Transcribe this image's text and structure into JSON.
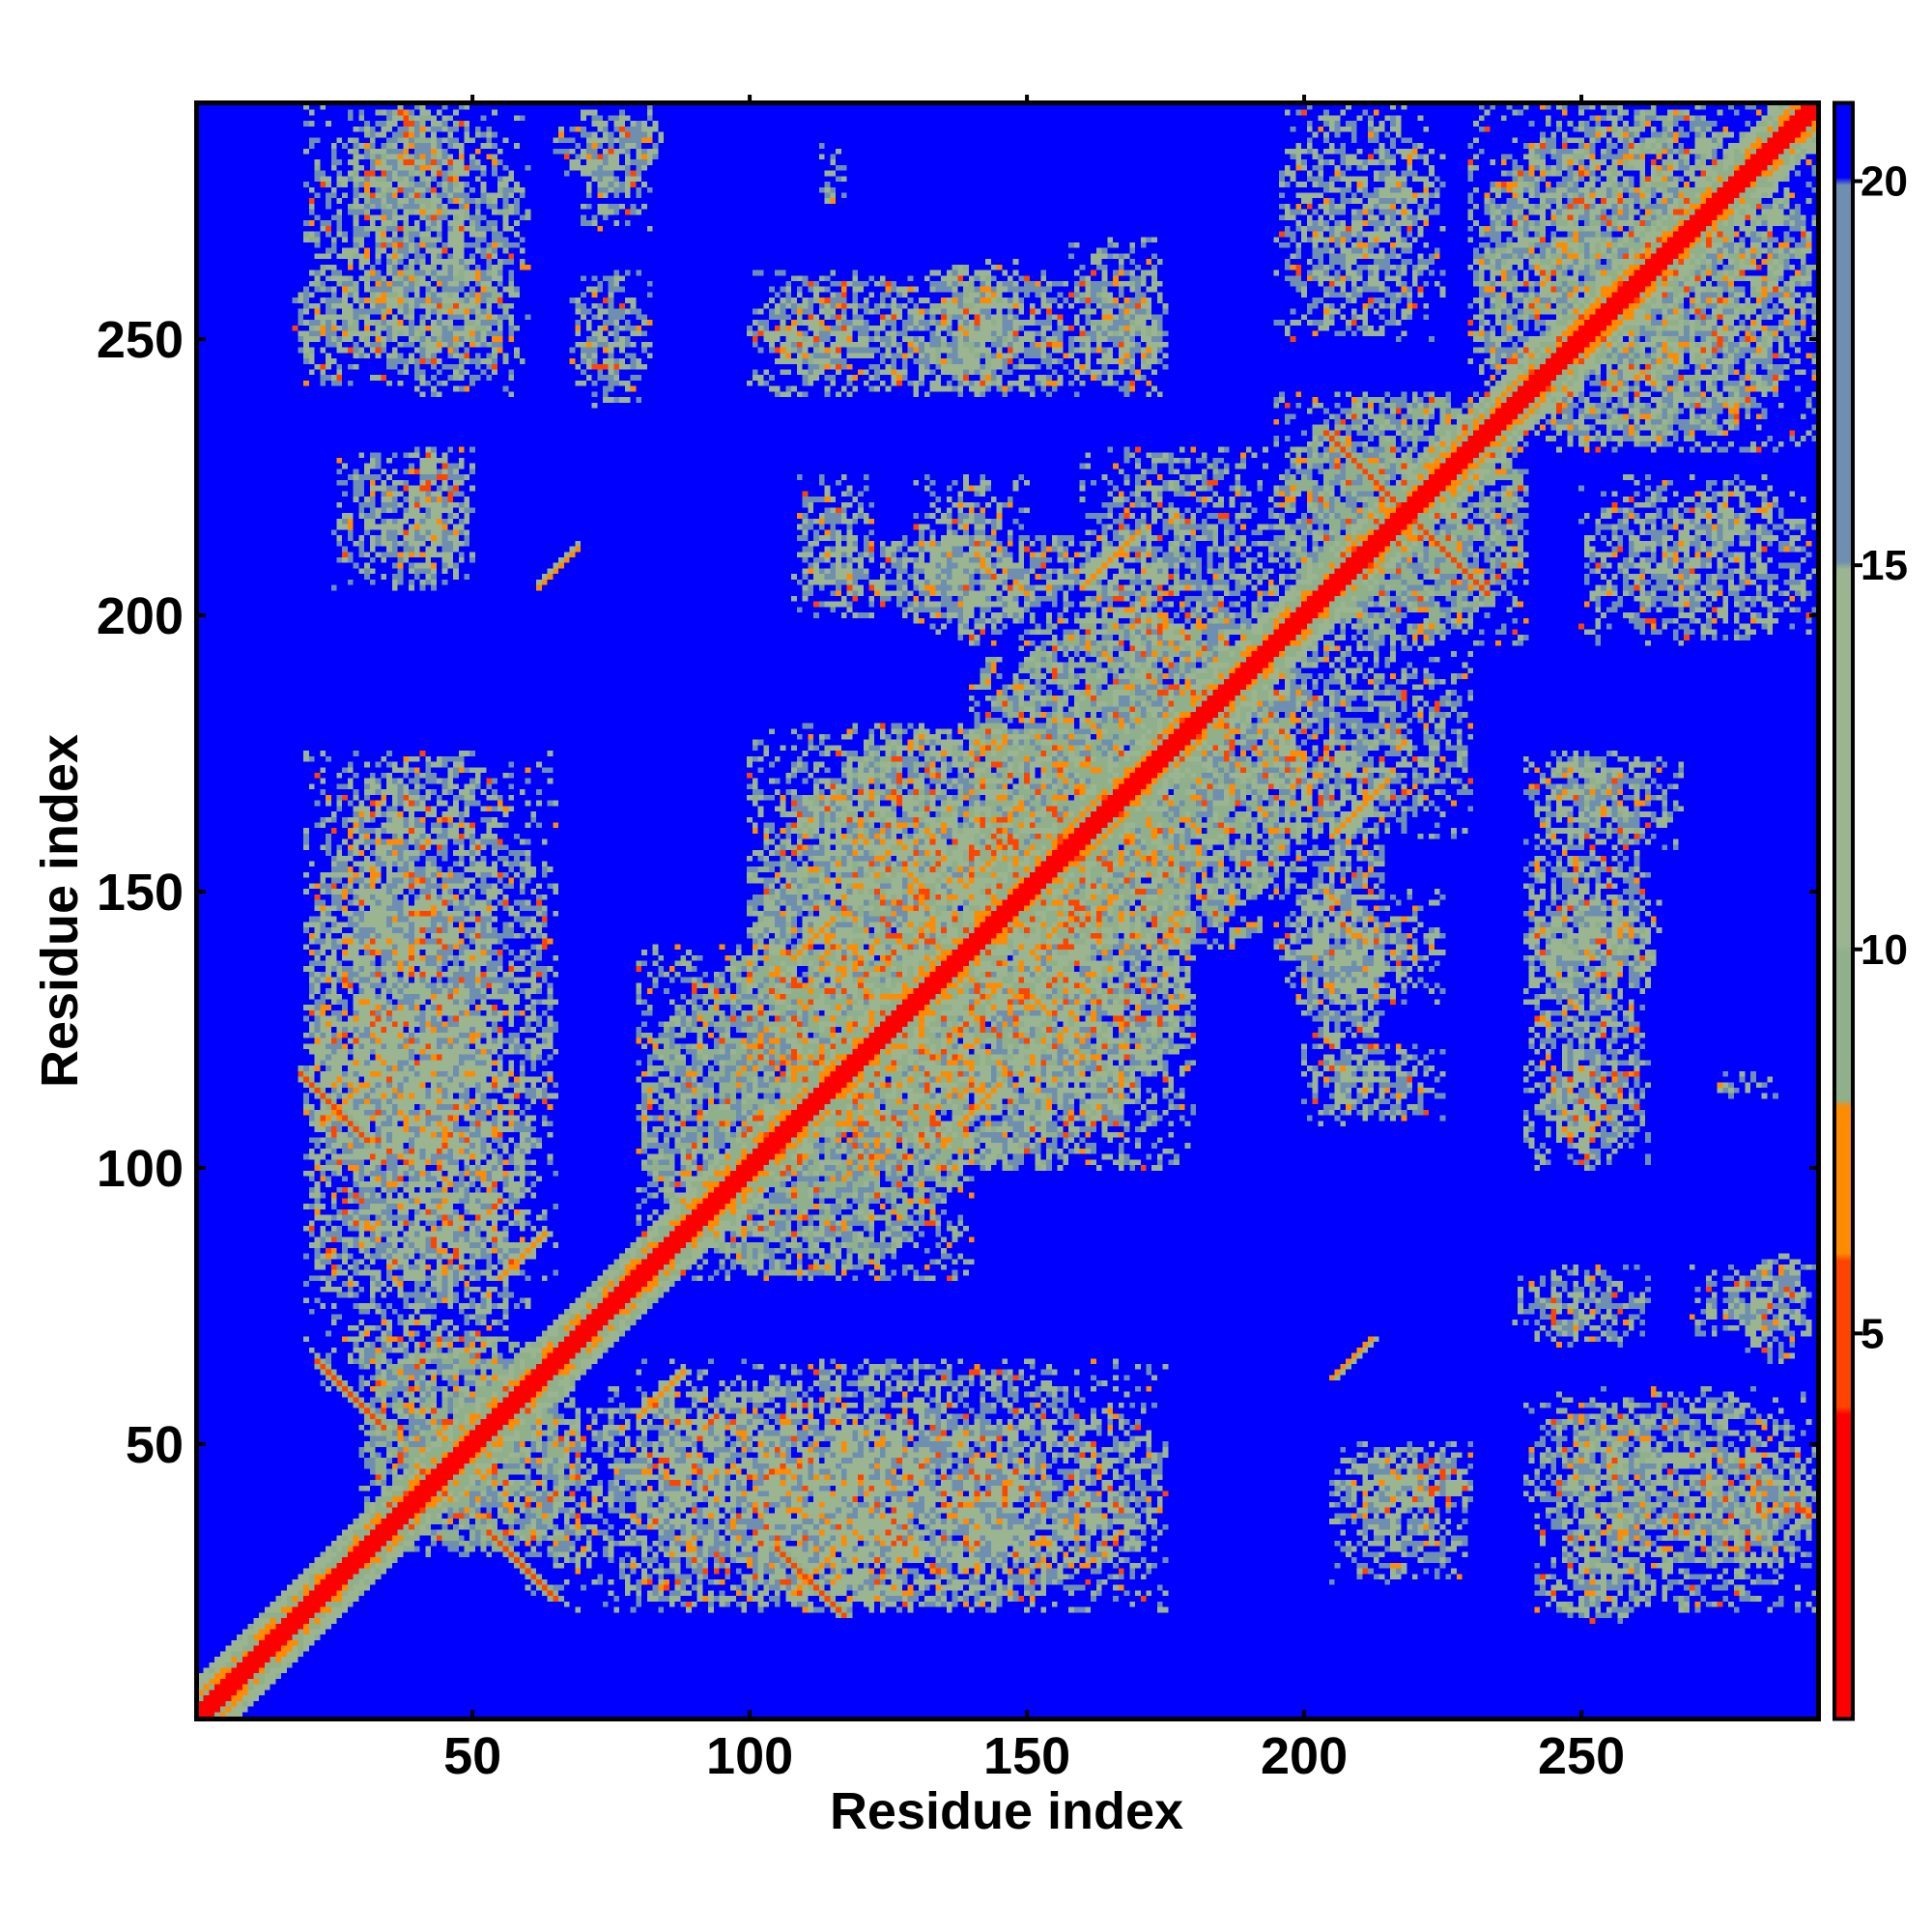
{
  "chart_data": {
    "type": "heatmap",
    "title": "",
    "xlabel": "Residue index",
    "ylabel": "Residue index",
    "n_residues": 292,
    "xlim": [
      1,
      292
    ],
    "ylim": [
      1,
      292
    ],
    "x_ticks": [
      50,
      100,
      150,
      200,
      250
    ],
    "y_ticks": [
      50,
      100,
      150,
      200,
      250
    ],
    "x_tick_labels": [
      "50",
      "100",
      "150",
      "200",
      "250"
    ],
    "y_tick_labels": [
      "50",
      "100",
      "150",
      "200",
      "250"
    ],
    "colorbar": {
      "range": [
        0,
        21
      ],
      "ticks": [
        5,
        10,
        15,
        20
      ],
      "tick_labels": [
        "5",
        "10",
        "15",
        "20"
      ],
      "bands": [
        {
          "from": 0,
          "to": 4,
          "color": "#ff0000"
        },
        {
          "from": 4,
          "to": 6,
          "color": "#ff4400"
        },
        {
          "from": 6,
          "to": 8,
          "color": "#ff8c00"
        },
        {
          "from": 8,
          "to": 10,
          "color": "#8fb08a"
        },
        {
          "from": 10,
          "to": 15,
          "color": "#9ab58f"
        },
        {
          "from": 15,
          "to": 20,
          "color": "#6f8fb0"
        },
        {
          "from": 20,
          "to": 21,
          "color": "#0000ff"
        }
      ]
    },
    "background_color": "#0000ff",
    "diagonal_color": "#ff0000",
    "symmetric": true,
    "contact_blocks": [
      {
        "i": [
          18,
          32
        ],
        "j": [
          242,
          262
        ],
        "level": 10
      },
      {
        "i": [
          32,
          58
        ],
        "j": [
          240,
          265
        ],
        "level": 9
      },
      {
        "i": [
          28,
          48
        ],
        "j": [
          270,
          292
        ],
        "level": 11
      },
      {
        "i": [
          68,
          82
        ],
        "j": [
          238,
          262
        ],
        "level": 12
      },
      {
        "i": [
          70,
          82
        ],
        "j": [
          270,
          285
        ],
        "level": 12
      },
      {
        "i": [
          104,
          118
        ],
        "j": [
          240,
          262
        ],
        "level": 9
      },
      {
        "i": [
          113,
          117
        ],
        "j": [
          275,
          285
        ],
        "level": 12
      },
      {
        "i": [
          132,
          148
        ],
        "j": [
          240,
          264
        ],
        "level": 9
      },
      {
        "i": [
          158,
          175
        ],
        "j": [
          240,
          268
        ],
        "level": 9
      },
      {
        "i": [
          195,
          225
        ],
        "j": [
          250,
          292
        ],
        "level": 10
      },
      {
        "i": [
          230,
          292
        ],
        "j": [
          230,
          292
        ],
        "level": 9
      },
      {
        "i": [
          35,
          50
        ],
        "j": [
          205,
          230
        ],
        "level": 12
      },
      {
        "i": [
          108,
          122
        ],
        "j": [
          200,
          225
        ],
        "level": 11
      },
      {
        "i": [
          130,
          150
        ],
        "j": [
          195,
          225
        ],
        "level": 10
      },
      {
        "i": [
          160,
          195
        ],
        "j": [
          180,
          230
        ],
        "level": 9
      },
      {
        "i": [
          195,
          240
        ],
        "j": [
          195,
          240
        ],
        "level": 8
      },
      {
        "i": [
          20,
          65
        ],
        "j": [
          80,
          175
        ],
        "level": 10
      },
      {
        "i": [
          30,
          70
        ],
        "j": [
          30,
          70
        ],
        "level": 8
      },
      {
        "i": [
          60,
          130
        ],
        "j": [
          20,
          60
        ],
        "level": 10
      },
      {
        "i": [
          80,
          140
        ],
        "j": [
          80,
          140
        ],
        "level": 8
      },
      {
        "i": [
          100,
          180
        ],
        "j": [
          100,
          180
        ],
        "level": 9
      },
      {
        "i": [
          140,
          200
        ],
        "j": [
          140,
          200
        ],
        "level": 8
      },
      {
        "i": [
          120,
          175
        ],
        "j": [
          100,
          160
        ],
        "level": 10
      },
      {
        "i": [
          200,
          215
        ],
        "j": [
          110,
          175
        ],
        "level": 11
      },
      {
        "i": [
          240,
          262
        ],
        "j": [
          100,
          175
        ],
        "level": 10
      },
      {
        "i": [
          245,
          292
        ],
        "j": [
          20,
          60
        ],
        "level": 9
      },
      {
        "i": [
          280,
          292
        ],
        "j": [
          65,
          85
        ],
        "level": 12
      },
      {
        "i": [
          205,
          230
        ],
        "j": [
          25,
          50
        ],
        "level": 12
      },
      {
        "i": [
          20,
          55
        ],
        "j": [
          100,
          170
        ],
        "level": 11
      }
    ],
    "antiparallel_contacts": [
      {
        "center": [
          218,
          218
        ],
        "half_length": 14,
        "level": 5
      },
      {
        "center": [
          58,
          28
        ],
        "half_length": 6,
        "level": 5
      },
      {
        "center": [
          110,
          25
        ],
        "half_length": 6,
        "level": 5
      }
    ],
    "parallel_contacts": [
      {
        "start": [
          23,
          108
        ],
        "end": [
          30,
          115
        ],
        "level": 6
      },
      {
        "start": [
          55,
          80
        ],
        "end": [
          63,
          88
        ],
        "level": 6
      },
      {
        "start": [
          80,
          55
        ],
        "end": [
          88,
          63
        ],
        "level": 6
      },
      {
        "start": [
          108,
          138
        ],
        "end": [
          115,
          145
        ],
        "level": 6
      },
      {
        "start": [
          138,
          108
        ],
        "end": [
          145,
          115
        ],
        "level": 6
      },
      {
        "start": [
          160,
          205
        ],
        "end": [
          170,
          213
        ],
        "level": 6
      },
      {
        "start": [
          205,
          160
        ],
        "end": [
          213,
          170
        ],
        "level": 6
      },
      {
        "start": [
          205,
          62
        ],
        "end": [
          212,
          70
        ],
        "level": 6
      }
    ]
  }
}
